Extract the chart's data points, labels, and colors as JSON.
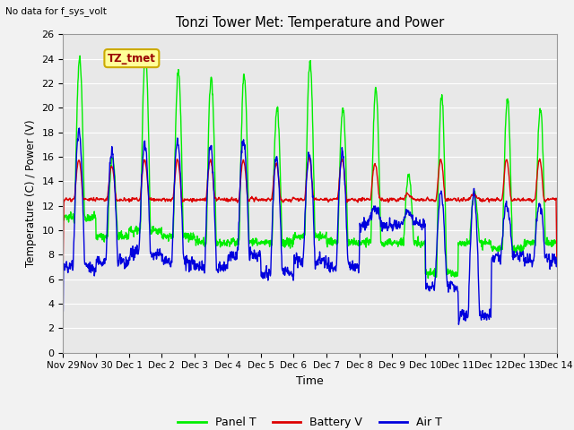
{
  "title": "Tonzi Tower Met: Temperature and Power",
  "top_left_text": "No data for f_sys_volt",
  "ylabel": "Temperature (C) / Power (V)",
  "xlabel": "Time",
  "legend_labels": [
    "Panel T",
    "Battery V",
    "Air T"
  ],
  "legend_colors": [
    "#00ee00",
    "#dd0000",
    "#0000dd"
  ],
  "annotation_text": "TZ_tmet",
  "annotation_box_color": "#ffff99",
  "annotation_box_edge": "#ccaa00",
  "xlim_start": 0,
  "xlim_end": 15.0,
  "ylim_bottom": 0,
  "ylim_top": 26,
  "yticks": [
    0,
    2,
    4,
    6,
    8,
    10,
    12,
    14,
    16,
    18,
    20,
    22,
    24,
    26
  ],
  "xtick_labels": [
    "Nov 29",
    "Nov 30",
    "Dec 1",
    "Dec 2",
    "Dec 3",
    "Dec 4",
    "Dec 5",
    "Dec 6",
    "Dec 7",
    "Dec 8",
    "Dec 9",
    "Dec 10",
    "Dec 11",
    "Dec 12",
    "Dec 13",
    "Dec 14"
  ],
  "plot_bg_color": "#e8e8e8",
  "fig_bg_color": "#f2f2f2",
  "grid_color": "#ffffff",
  "panel_color": "#00ee00",
  "battery_color": "#dd0000",
  "air_color": "#0000dd",
  "line_width": 1.0
}
